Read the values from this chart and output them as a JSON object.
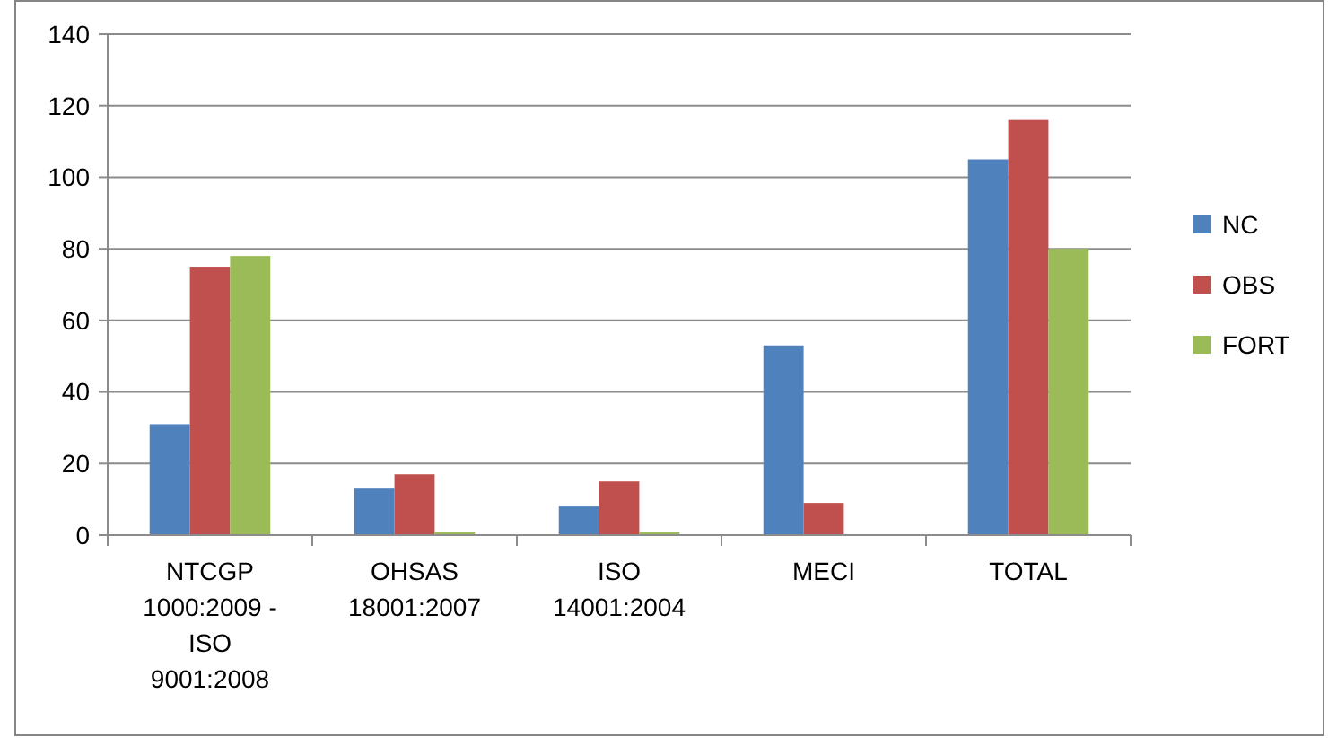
{
  "chart_data": {
    "type": "bar",
    "categories": [
      "NTCGP 1000:2009 - ISO 9001:2008",
      "OHSAS 18001:2007",
      "ISO 14001:2004",
      "MECI",
      "TOTAL"
    ],
    "series": [
      {
        "name": "NC",
        "color": "#4f81bd",
        "values": [
          31,
          13,
          8,
          53,
          105
        ]
      },
      {
        "name": "OBS",
        "color": "#c0504d",
        "values": [
          75,
          17,
          15,
          9,
          116
        ]
      },
      {
        "name": "FORT",
        "color": "#9bbb59",
        "values": [
          78,
          1,
          1,
          0,
          80
        ]
      }
    ],
    "ylim": [
      0,
      140
    ],
    "yticks": [
      0,
      20,
      40,
      60,
      80,
      100,
      120,
      140
    ],
    "grid": "y",
    "legend": "right"
  }
}
